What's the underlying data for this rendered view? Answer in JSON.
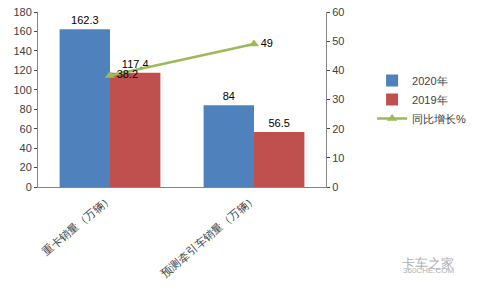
{
  "chart_data": {
    "type": "bar",
    "categories": [
      "重卡销量（万辆）",
      "预测牵引车销量（万辆）"
    ],
    "series": [
      {
        "name": "2020年",
        "type": "bar",
        "color": "#4f81bd",
        "values": [
          162.3,
          84
        ]
      },
      {
        "name": "2019年",
        "type": "bar",
        "color": "#c0504d",
        "values": [
          117.4,
          56.5
        ]
      },
      {
        "name": "同比增长%",
        "type": "line",
        "axis": "y2",
        "color": "#9bbb59",
        "marker": "triangle-up",
        "values": [
          38.2,
          49
        ]
      }
    ],
    "ylim": [
      0,
      180
    ],
    "yticks": [
      0,
      20,
      40,
      60,
      80,
      100,
      120,
      140,
      160,
      180
    ],
    "y2lim": [
      0,
      60
    ],
    "y2ticks": [
      0,
      10,
      20,
      30,
      40,
      50,
      60
    ],
    "grid": false,
    "legend": "right",
    "data_labels": true,
    "annotations": [
      "卡车之家",
      "360CHE.COM"
    ]
  }
}
